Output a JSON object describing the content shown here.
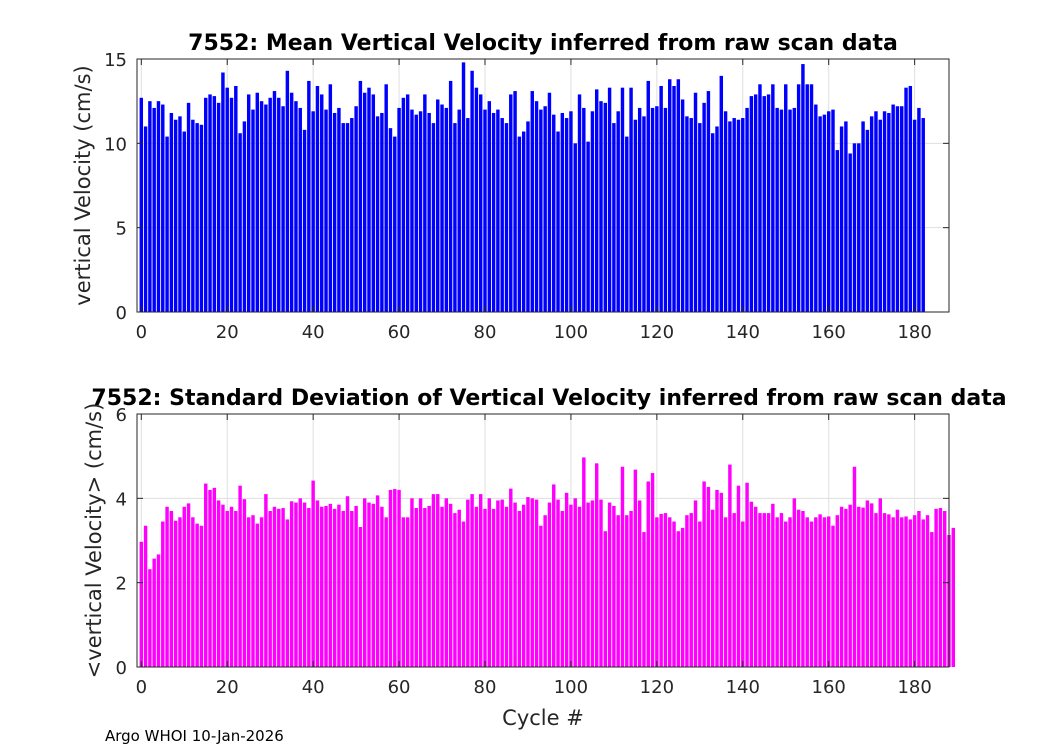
{
  "footer": "Argo WHOI 10-Jan-2026",
  "chart_data": [
    {
      "type": "bar",
      "title": "7552: Mean Vertical Velocity inferred from raw scan data",
      "xlabel": "",
      "ylabel": "vertical Velocity (cm/s)",
      "xlim": [
        -1,
        188
      ],
      "ylim": [
        0,
        15
      ],
      "xticks": [
        0,
        20,
        40,
        60,
        80,
        100,
        120,
        140,
        160,
        180
      ],
      "yticks": [
        0,
        5,
        10,
        15
      ],
      "grid": true,
      "color": "#0000ff",
      "x_start": 0,
      "values": [
        12.7,
        11.0,
        12.5,
        12.1,
        12.5,
        12.3,
        10.4,
        11.8,
        11.4,
        11.6,
        10.7,
        12.4,
        11.4,
        11.2,
        11.1,
        12.7,
        12.9,
        12.8,
        12.4,
        14.2,
        13.3,
        12.7,
        13.4,
        10.6,
        11.3,
        12.9,
        12.0,
        13.0,
        12.5,
        12.3,
        12.7,
        13.1,
        12.7,
        12.2,
        14.3,
        13.0,
        12.5,
        12.1,
        10.8,
        13.7,
        11.9,
        13.4,
        12.9,
        12.0,
        13.5,
        11.8,
        12.1,
        11.2,
        11.2,
        11.5,
        12.2,
        13.7,
        13.0,
        13.3,
        12.9,
        11.6,
        11.8,
        13.5,
        10.9,
        10.4,
        12.1,
        12.7,
        12.9,
        12.0,
        11.7,
        11.9,
        12.9,
        11.8,
        11.2,
        12.6,
        12.3,
        12.1,
        13.7,
        11.2,
        12.0,
        14.8,
        11.5,
        14.3,
        13.3,
        12.9,
        12.0,
        12.5,
        11.8,
        12.0,
        11.5,
        11.2,
        12.9,
        13.1,
        10.4,
        10.7,
        11.3,
        13.1,
        12.5,
        12.0,
        12.2,
        13.0,
        11.7,
        10.7,
        11.8,
        11.5,
        11.9,
        10.0,
        12.9,
        12.1,
        10.1,
        11.9,
        13.2,
        12.5,
        12.4,
        13.3,
        11.2,
        11.9,
        13.3,
        10.4,
        13.3,
        11.4,
        12.1,
        11.6,
        13.7,
        12.1,
        12.2,
        13.4,
        12.1,
        13.8,
        13.4,
        13.8,
        12.6,
        11.6,
        11.5,
        13.0,
        11.2,
        12.4,
        13.1,
        10.6,
        11.0,
        14.0,
        11.9,
        11.3,
        11.5,
        11.4,
        11.5,
        12.1,
        12.8,
        12.9,
        13.5,
        12.8,
        12.9,
        13.5,
        12.1,
        12.0,
        13.5,
        12.0,
        12.1,
        13.5,
        14.7,
        13.5,
        13.5,
        12.3,
        11.6,
        11.7,
        11.9,
        12.0,
        9.6,
        11.0,
        11.3,
        9.4,
        10.0,
        10.0,
        11.3,
        10.8,
        11.6,
        11.9,
        11.4,
        11.9,
        11.8,
        12.3,
        12.2,
        12.2,
        13.3,
        13.4,
        11.4,
        12.1,
        11.5
      ]
    },
    {
      "type": "bar",
      "title": "7552: Standard Deviation of Vertical Velocity inferred from raw scan data",
      "xlabel": "Cycle #",
      "ylabel": "<vertical Velocity> (cm/s)",
      "xlim": [
        -1,
        188
      ],
      "ylim": [
        0,
        6
      ],
      "xticks": [
        0,
        20,
        40,
        60,
        80,
        100,
        120,
        140,
        160,
        180
      ],
      "yticks": [
        0,
        2,
        4,
        6
      ],
      "grid": true,
      "color": "#ff00ff",
      "x_start": 0,
      "values": [
        2.97,
        3.35,
        2.32,
        2.57,
        2.67,
        3.45,
        3.8,
        3.7,
        3.47,
        3.55,
        3.8,
        3.88,
        3.55,
        3.4,
        3.35,
        4.35,
        4.2,
        4.25,
        3.95,
        3.85,
        3.7,
        3.8,
        3.7,
        4.3,
        3.98,
        3.55,
        3.6,
        3.4,
        3.55,
        4.1,
        3.7,
        3.8,
        3.75,
        3.77,
        3.5,
        3.93,
        3.9,
        4.0,
        3.9,
        3.77,
        4.42,
        3.95,
        3.8,
        3.82,
        3.87,
        3.75,
        3.85,
        3.7,
        4.05,
        3.7,
        3.82,
        3.32,
        4.0,
        3.9,
        3.87,
        4.07,
        3.8,
        3.55,
        4.2,
        4.22,
        4.2,
        3.55,
        3.55,
        4.0,
        3.77,
        4.0,
        3.77,
        3.82,
        4.1,
        4.1,
        3.8,
        4.0,
        3.87,
        3.65,
        3.73,
        3.45,
        3.97,
        4.1,
        3.8,
        4.1,
        3.75,
        4.0,
        3.75,
        3.95,
        3.97,
        3.8,
        4.23,
        3.9,
        3.7,
        3.85,
        4.03,
        4.0,
        3.97,
        3.35,
        3.6,
        3.9,
        4.33,
        3.97,
        3.7,
        4.13,
        3.85,
        4.0,
        3.8,
        4.97,
        3.9,
        3.95,
        4.83,
        3.97,
        3.22,
        3.9,
        3.82,
        3.6,
        4.75,
        3.6,
        3.7,
        4.68,
        3.95,
        3.2,
        4.4,
        4.6,
        3.55,
        3.63,
        3.65,
        3.55,
        3.45,
        3.22,
        3.3,
        3.6,
        3.65,
        3.95,
        3.45,
        4.4,
        4.27,
        3.73,
        4.2,
        4.13,
        3.55,
        4.8,
        3.65,
        4.3,
        3.45,
        4.37,
        3.92,
        3.8,
        3.65,
        3.65,
        3.65,
        3.87,
        3.55,
        3.65,
        3.45,
        3.55,
        4.0,
        3.73,
        3.7,
        3.55,
        3.45,
        3.55,
        3.62,
        3.55,
        3.57,
        3.35,
        3.6,
        3.8,
        3.75,
        3.85,
        4.75,
        3.8,
        3.78,
        3.95,
        3.88,
        3.65,
        4.0,
        3.65,
        3.62,
        3.55,
        3.73,
        3.55,
        3.57,
        3.5,
        3.6,
        3.7,
        3.5,
        3.6,
        3.2,
        3.75,
        3.77,
        3.7,
        3.13,
        3.3
      ]
    }
  ]
}
